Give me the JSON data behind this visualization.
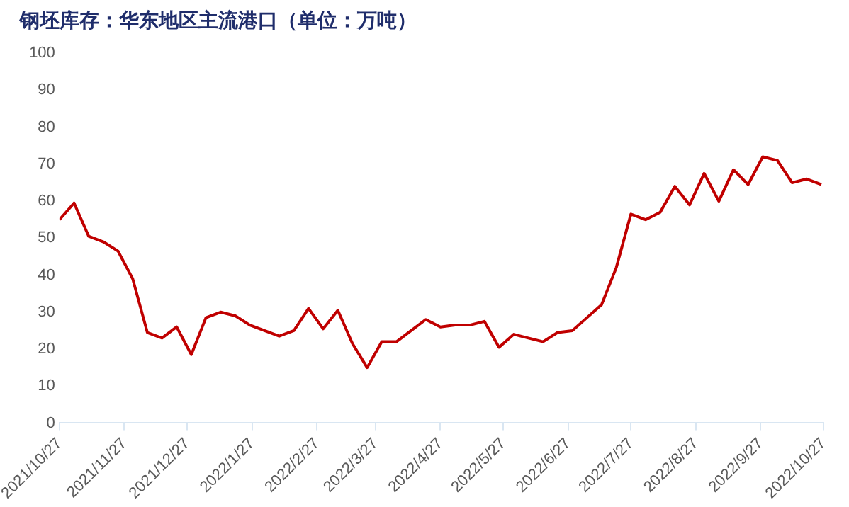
{
  "chart_data": {
    "type": "line",
    "title": "钢坯库存：华东地区主流港口（单位：万吨）",
    "x": [
      "2021-10-27",
      "2021-11-03",
      "2021-11-10",
      "2021-11-17",
      "2021-11-24",
      "2021-12-01",
      "2021-12-08",
      "2021-12-15",
      "2021-12-22",
      "2021-12-29",
      "2022-01-05",
      "2022-01-12",
      "2022-01-19",
      "2022-01-26",
      "2022-02-02",
      "2022-02-09",
      "2022-02-16",
      "2022-02-23",
      "2022-03-02",
      "2022-03-09",
      "2022-03-16",
      "2022-03-23",
      "2022-03-30",
      "2022-04-06",
      "2022-04-13",
      "2022-04-20",
      "2022-04-27",
      "2022-05-04",
      "2022-05-11",
      "2022-05-18",
      "2022-05-25",
      "2022-06-01",
      "2022-06-08",
      "2022-06-15",
      "2022-06-22",
      "2022-06-29",
      "2022-07-06",
      "2022-07-13",
      "2022-07-20",
      "2022-07-27",
      "2022-08-03",
      "2022-08-10",
      "2022-08-17",
      "2022-08-24",
      "2022-08-31",
      "2022-09-07",
      "2022-09-14",
      "2022-09-21",
      "2022-09-28",
      "2022-10-05",
      "2022-10-12",
      "2022-10-19",
      "2022-10-26"
    ],
    "series": [
      {
        "color": "#c00000",
        "values": [
          55,
          59.5,
          50.5,
          49,
          46.5,
          39,
          24.5,
          23,
          26,
          18.5,
          28.5,
          30,
          29,
          26.5,
          25,
          23.5,
          25,
          31,
          25.5,
          30.5,
          21.5,
          15,
          22,
          22,
          25,
          28,
          26,
          26.5,
          26.5,
          27.5,
          20.5,
          24,
          23,
          22,
          24.5,
          25,
          28.5,
          32,
          42,
          56.5,
          55,
          57,
          64,
          59,
          67.5,
          60,
          68.5,
          64.5,
          72,
          71,
          65,
          66,
          64.5
        ]
      }
    ],
    "xlim": [
      "2021-10-27",
      "2022-10-27"
    ],
    "xticks": [
      {
        "value": "2021-10-27",
        "label": "2021/10/27"
      },
      {
        "value": "2021-11-27",
        "label": "2021/11/27"
      },
      {
        "value": "2021-12-27",
        "label": "2021/12/27"
      },
      {
        "value": "2022-01-27",
        "label": "2022/1/27"
      },
      {
        "value": "2022-02-27",
        "label": "2022/2/27"
      },
      {
        "value": "2022-03-27",
        "label": "2022/3/27"
      },
      {
        "value": "2022-04-27",
        "label": "2022/4/27"
      },
      {
        "value": "2022-05-27",
        "label": "2022/5/27"
      },
      {
        "value": "2022-06-27",
        "label": "2022/6/27"
      },
      {
        "value": "2022-07-27",
        "label": "2022/7/27"
      },
      {
        "value": "2022-08-27",
        "label": "2022/8/27"
      },
      {
        "value": "2022-09-27",
        "label": "2022/9/27"
      },
      {
        "value": "2022-10-27",
        "label": "2022/10/27"
      }
    ],
    "ylim": [
      0,
      100
    ],
    "yticks": [
      0,
      10,
      20,
      30,
      40,
      50,
      60,
      70,
      80,
      90,
      100
    ],
    "grid": false,
    "legend": false,
    "marker": "none",
    "line_style": "solid"
  }
}
